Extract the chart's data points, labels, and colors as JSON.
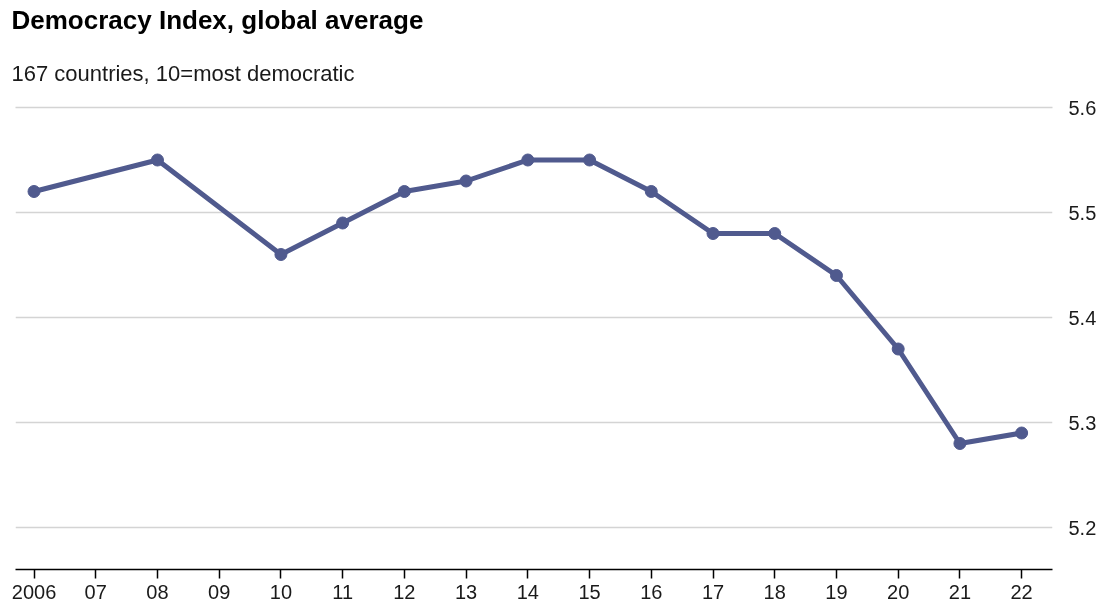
{
  "chart_data": {
    "type": "line",
    "title": "Democracy Index, global average",
    "subtitle": "167 countries, 10=most democratic",
    "x": [
      2006,
      2008,
      2010,
      2011,
      2012,
      2013,
      2014,
      2015,
      2016,
      2017,
      2018,
      2019,
      2020,
      2021,
      2022
    ],
    "series": [
      {
        "color": "#505a8e",
        "values": [
          5.52,
          5.55,
          5.46,
          5.49,
          5.52,
          5.53,
          5.55,
          5.55,
          5.52,
          5.48,
          5.48,
          5.44,
          5.37,
          5.28,
          5.29
        ]
      }
    ],
    "xlim": [
      2005.7,
      2022.5
    ],
    "xticks": [
      2006,
      {
        "value": 2007,
        "label": "07"
      },
      {
        "value": 2008,
        "label": "08"
      },
      {
        "value": 2009,
        "label": "09"
      },
      {
        "value": 2010,
        "label": "10"
      },
      {
        "value": 2011,
        "label": "11"
      },
      {
        "value": 2012,
        "label": "12"
      },
      {
        "value": 2013,
        "label": "13"
      },
      {
        "value": 2014,
        "label": "14"
      },
      {
        "value": 2015,
        "label": "15"
      },
      {
        "value": 2016,
        "label": "16"
      },
      {
        "value": 2017,
        "label": "17"
      },
      {
        "value": 2018,
        "label": "18"
      },
      {
        "value": 2019,
        "label": "19"
      },
      {
        "value": 2020,
        "label": "20"
      },
      {
        "value": 2021,
        "label": "21"
      },
      {
        "value": 2022,
        "label": "22"
      }
    ],
    "ylim": [
      5.16,
      5.6
    ],
    "yticks": [
      5.2,
      5.3,
      5.4,
      5.5,
      5.6
    ],
    "grid": "y",
    "marker": "circle",
    "line_style": "solid"
  }
}
